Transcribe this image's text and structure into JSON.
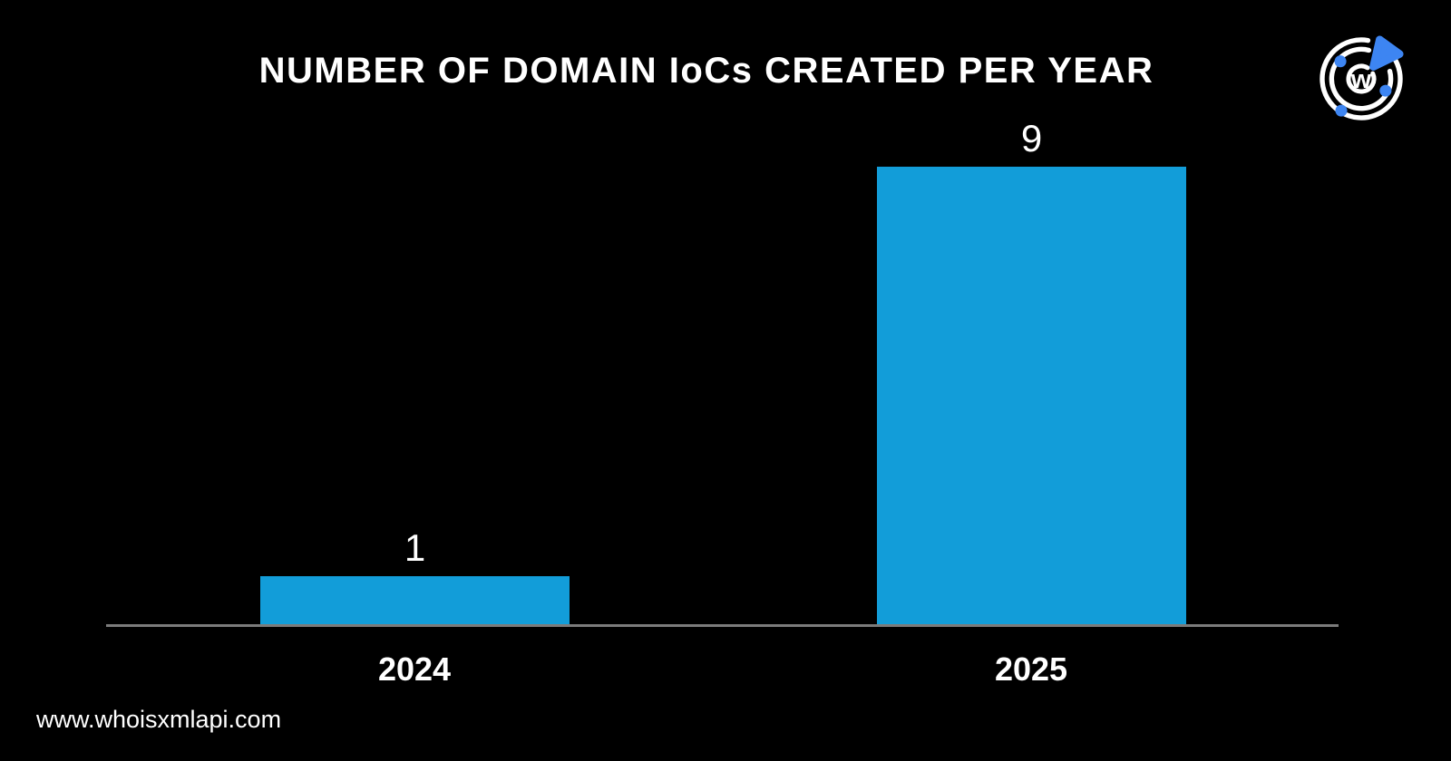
{
  "header": {
    "title": "NUMBER OF DOMAIN IoCs CREATED PER YEAR"
  },
  "logo": {
    "letter": "w",
    "blue": "#3d85f2",
    "ring_color": "#ffffff"
  },
  "footer": {
    "url": "www.whoisxmlapi.com"
  },
  "chart_data": {
    "type": "bar",
    "title": "NUMBER OF DOMAIN IoCs CREATED PER YEAR",
    "categories": [
      "2024",
      "2025"
    ],
    "values": [
      1,
      9
    ],
    "xlabel": "",
    "ylabel": "",
    "ylim": [
      0,
      9
    ],
    "grid": false,
    "legend": false,
    "data_labels": true,
    "bar_color": "#129dd9",
    "axis_color": "#7b7b7b",
    "text_color": "#ffffff",
    "background": "#000000"
  }
}
